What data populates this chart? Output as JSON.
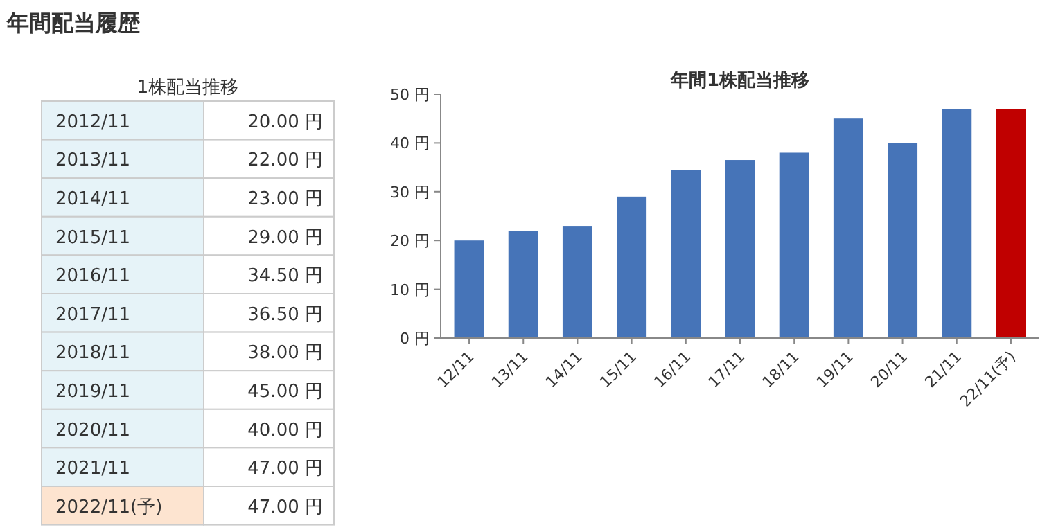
{
  "chart_data": {
    "type": "bar",
    "title": "年間配当履歴",
    "subtitle": "年間1株配当推移",
    "annotations": [
      "1株配当推移",
      "2012/11",
      "20.00 円",
      "2013/11",
      "22.00 円",
      "2014/11",
      "23.00 円",
      "2015/11",
      "29.00 円",
      "2016/11",
      "34.50 円",
      "2017/11",
      "36.50 円",
      "2018/11",
      "38.00 円",
      "2019/11",
      "45.00 円",
      "2020/11",
      "40.00 円",
      "2021/11",
      "47.00 円",
      "2022/11(予)",
      "47.00 円"
    ],
    "categories": [
      "12/11",
      "13/11",
      "14/11",
      "15/11",
      "16/11",
      "17/11",
      "18/11",
      "19/11",
      "20/11",
      "21/11",
      "22/11(予)"
    ],
    "values": [
      20,
      22,
      23,
      29,
      34.5,
      36.5,
      38,
      45,
      40,
      47,
      47
    ],
    "colors": [
      "#4674b8",
      "#4674b8",
      "#4674b8",
      "#4674b8",
      "#4674b8",
      "#4674b8",
      "#4674b8",
      "#4674b8",
      "#4674b8",
      "#4674b8",
      "#c00000"
    ],
    "ylim": [
      0,
      50
    ],
    "yticks": [
      {
        "value": 0,
        "label": "0 円"
      },
      {
        "value": 10,
        "label": "10 円"
      },
      {
        "value": 20,
        "label": "20 円"
      },
      {
        "value": 30,
        "label": "30 円"
      },
      {
        "value": 40,
        "label": "40 円"
      },
      {
        "value": 50,
        "label": "50 円"
      }
    ]
  }
}
